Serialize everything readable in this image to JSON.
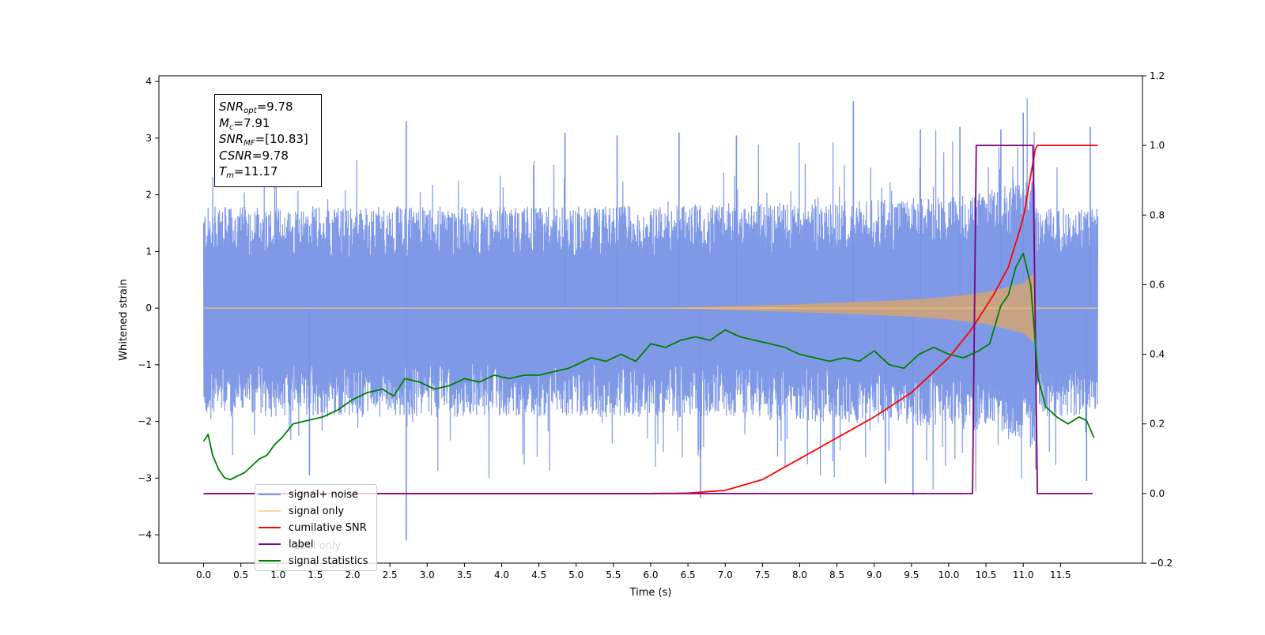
{
  "chart_data": {
    "type": "line",
    "xlabel": "Time (s)",
    "ylabel": "Whitened strain",
    "xlim": [
      -0.6,
      12.6
    ],
    "ylim_left": [
      -4.5,
      4.1
    ],
    "ylim_right": [
      -0.2,
      1.2
    ],
    "x_ticks": [
      "0.0",
      "0.5",
      "1.0",
      "1.5",
      "2.0",
      "2.5",
      "3.0",
      "3.5",
      "4.0",
      "4.5",
      "5.0",
      "5.5",
      "6.0",
      "6.5",
      "7.0",
      "7.5",
      "8.0",
      "8.5",
      "9.0",
      "9.5",
      "10.0",
      "10.5",
      "11.0",
      "11.5"
    ],
    "y_ticks_left": [
      "4",
      "3",
      "2",
      "1",
      "0",
      "−1",
      "−2",
      "−3",
      "−4"
    ],
    "y_ticks_right": [
      "1.2",
      "1.0",
      "0.8",
      "0.6",
      "0.4",
      "0.2",
      "0.0",
      "−0.2"
    ],
    "annotation": {
      "snr_opt": "9.78",
      "mc": "7.91",
      "snr_mf": "[10.83]",
      "csnr": "9.78",
      "tm": "11.17"
    },
    "legend": {
      "placement": "lower-left",
      "entries": [
        {
          "label": "signal+ noise",
          "color": "#7893e6"
        },
        {
          "label": "signal only",
          "color": "#fbc47a"
        },
        {
          "label": "cumilative SNR",
          "color": "#ff0000"
        },
        {
          "label": "label",
          "color": "#800080"
        },
        {
          "label": "signal statistics",
          "color": "#008000"
        }
      ],
      "ghost_text": "label only"
    },
    "series": [
      {
        "name": "signal+ noise",
        "axis": "left",
        "color": "#7893e6",
        "x_range": [
          0.0,
          12.0
        ],
        "typical_envelope": [
          -1.6,
          1.5
        ],
        "peaks": [
          {
            "x": 2.72,
            "y": 3.3
          },
          {
            "x": 8.72,
            "y": 3.65
          },
          {
            "x": 11.0,
            "y": 3.45
          },
          {
            "x": 11.9,
            "y": 3.2
          },
          {
            "x": 6.38,
            "y": 3.1
          },
          {
            "x": 9.62,
            "y": 3.15
          },
          {
            "x": 10.15,
            "y": 3.2
          },
          {
            "x": 10.7,
            "y": 3.15
          },
          {
            "x": 5.55,
            "y": 3.05
          },
          {
            "x": 4.85,
            "y": 3.1
          },
          {
            "x": 7.15,
            "y": 3.05
          }
        ],
        "troughs": [
          {
            "x": 2.72,
            "y": -4.1
          },
          {
            "x": 6.67,
            "y": -3.35
          },
          {
            "x": 9.52,
            "y": -3.3
          },
          {
            "x": 11.17,
            "y": -2.85
          },
          {
            "x": 1.42,
            "y": -2.95
          },
          {
            "x": 9.15,
            "y": -3.1
          },
          {
            "x": 11.85,
            "y": -3.05
          }
        ]
      },
      {
        "name": "signal only",
        "axis": "left",
        "color": "#fbc47a",
        "x": [
          0.0,
          6.0,
          7.0,
          8.0,
          9.0,
          9.5,
          10.0,
          10.5,
          11.0,
          11.15,
          11.17,
          12.0
        ],
        "envelope": [
          0.0,
          0.0,
          0.03,
          0.07,
          0.12,
          0.15,
          0.2,
          0.28,
          0.44,
          0.62,
          0.0,
          0.0
        ]
      },
      {
        "name": "cumilative SNR",
        "axis": "right",
        "color": "#ff0000",
        "x": [
          0.0,
          6.0,
          6.5,
          7.0,
          7.5,
          8.0,
          8.5,
          9.0,
          9.5,
          10.0,
          10.3,
          10.6,
          10.8,
          11.0,
          11.17,
          12.0
        ],
        "y": [
          0.0,
          0.0,
          0.001,
          0.009,
          0.04,
          0.1,
          0.16,
          0.22,
          0.29,
          0.39,
          0.47,
          0.57,
          0.65,
          0.79,
          1.0,
          1.0
        ]
      },
      {
        "name": "label",
        "axis": "right",
        "color": "#800080",
        "x": [
          0.0,
          10.32,
          10.37,
          11.13,
          11.19,
          11.93
        ],
        "y": [
          0.0,
          0.0,
          1.0,
          1.0,
          0.0,
          0.0
        ]
      },
      {
        "name": "signal statistics",
        "axis": "right",
        "color": "#008000",
        "x": [
          0.0,
          0.06,
          0.12,
          0.2,
          0.28,
          0.36,
          0.45,
          0.55,
          0.65,
          0.75,
          0.85,
          0.95,
          1.05,
          1.2,
          1.4,
          1.6,
          1.8,
          2.0,
          2.2,
          2.4,
          2.55,
          2.7,
          2.9,
          3.1,
          3.3,
          3.5,
          3.7,
          3.9,
          4.1,
          4.3,
          4.5,
          4.7,
          4.9,
          5.0,
          5.2,
          5.4,
          5.6,
          5.8,
          6.0,
          6.2,
          6.4,
          6.6,
          6.8,
          7.0,
          7.2,
          7.4,
          7.6,
          7.8,
          8.0,
          8.2,
          8.4,
          8.6,
          8.8,
          9.0,
          9.2,
          9.4,
          9.6,
          9.8,
          10.0,
          10.2,
          10.4,
          10.55,
          10.7,
          10.8,
          10.9,
          11.0,
          11.1,
          11.2,
          11.3,
          11.45,
          11.6,
          11.75,
          11.85,
          11.95
        ],
        "y": [
          0.15,
          0.17,
          0.11,
          0.07,
          0.045,
          0.04,
          0.05,
          0.06,
          0.08,
          0.1,
          0.11,
          0.14,
          0.16,
          0.2,
          0.21,
          0.22,
          0.24,
          0.27,
          0.29,
          0.3,
          0.28,
          0.33,
          0.32,
          0.3,
          0.31,
          0.33,
          0.32,
          0.34,
          0.33,
          0.34,
          0.34,
          0.35,
          0.36,
          0.37,
          0.39,
          0.38,
          0.4,
          0.38,
          0.43,
          0.42,
          0.44,
          0.45,
          0.44,
          0.47,
          0.45,
          0.44,
          0.43,
          0.42,
          0.4,
          0.39,
          0.38,
          0.39,
          0.38,
          0.41,
          0.37,
          0.36,
          0.4,
          0.42,
          0.4,
          0.39,
          0.41,
          0.43,
          0.54,
          0.57,
          0.65,
          0.69,
          0.6,
          0.33,
          0.25,
          0.22,
          0.2,
          0.22,
          0.21,
          0.16
        ]
      }
    ]
  }
}
